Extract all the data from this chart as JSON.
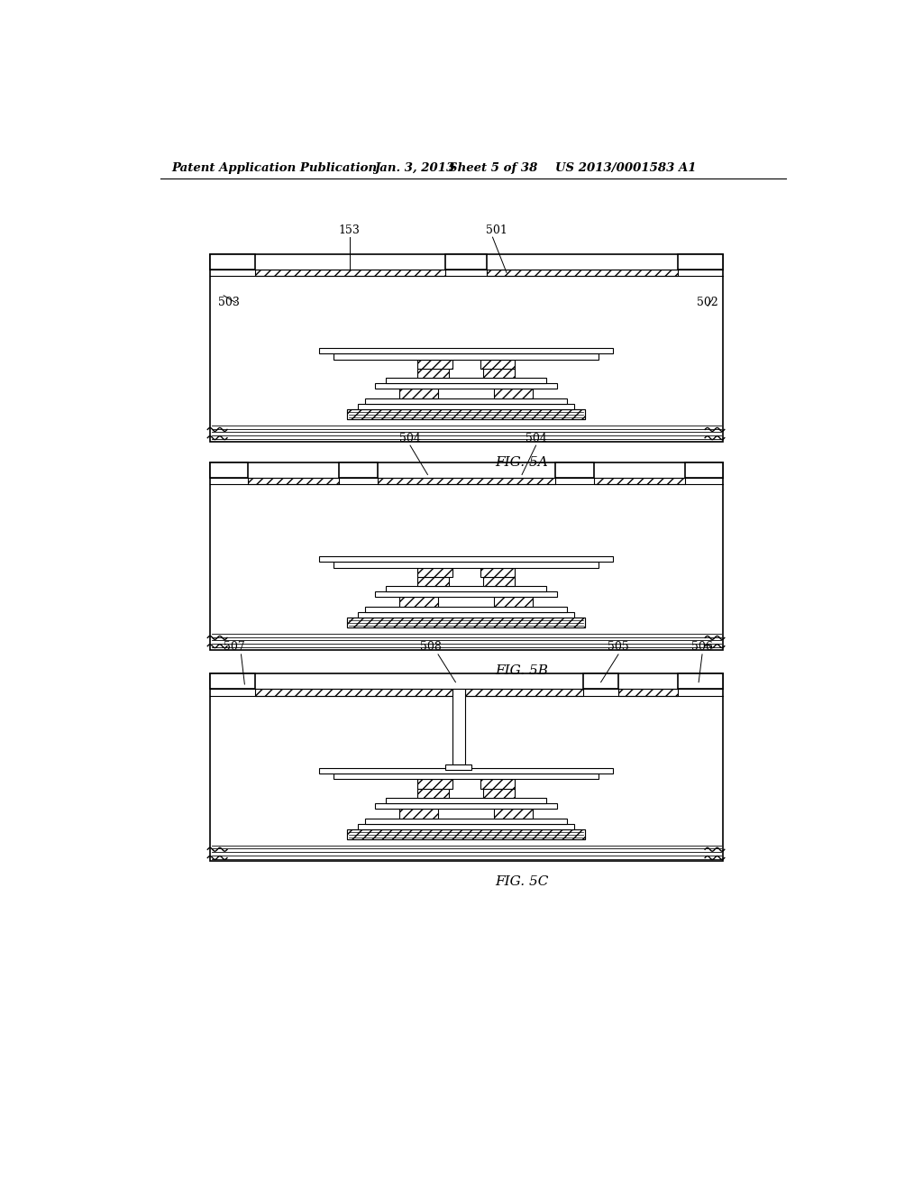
{
  "background_color": "#ffffff",
  "header_left": "Patent Application Publication",
  "header_mid1": "Jan. 3, 2013",
  "header_mid2": "Sheet 5 of 38",
  "header_right": "US 2013/0001583 A1",
  "fig5a_label": "FIG. 5A",
  "fig5b_label": "FIG. 5B",
  "fig5c_label": "FIG. 5C",
  "labels_5a": [
    "153",
    "501",
    "503",
    "502"
  ],
  "labels_5b": [
    "504",
    "504"
  ],
  "labels_5c": [
    "507",
    "508",
    "505",
    "506"
  ]
}
